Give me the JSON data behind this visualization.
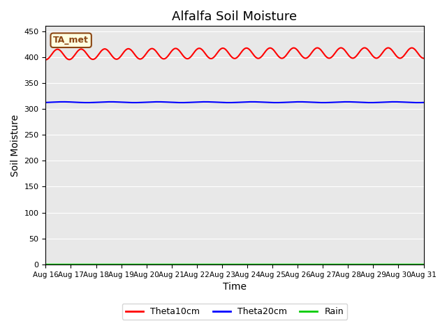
{
  "title": "Alfalfa Soil Moisture",
  "xlabel": "Time",
  "ylabel": "Soil Moisture",
  "annotation": "TA_met",
  "annotation_color": "#8B4513",
  "annotation_bg": "#FFFFE0",
  "annotation_border": "#8B4513",
  "ylim": [
    0,
    460
  ],
  "yticks": [
    0,
    50,
    100,
    150,
    200,
    250,
    300,
    350,
    400,
    450
  ],
  "x_labels": [
    "Aug 16",
    "Aug 17",
    "Aug 18",
    "Aug 19",
    "Aug 20",
    "Aug 21",
    "Aug 22",
    "Aug 23",
    "Aug 24",
    "Aug 25",
    "Aug 26",
    "Aug 27",
    "Aug 28",
    "Aug 29",
    "Aug 30",
    "Aug 31"
  ],
  "num_days": 16,
  "theta10_base": 405,
  "theta10_amp": 10,
  "theta20_base": 313,
  "theta20_amp": 1.5,
  "rain_base": 1,
  "line_colors": {
    "theta10": "#FF0000",
    "theta20": "#0000FF",
    "rain": "#00CC00"
  },
  "line_widths": {
    "theta10": 1.5,
    "theta20": 1.5,
    "rain": 1.0
  },
  "legend_labels": [
    "Theta10cm",
    "Theta20cm",
    "Rain"
  ],
  "background_color": "#E8E8E8",
  "grid_color": "#FFFFFF",
  "title_fontsize": 13,
  "label_fontsize": 10
}
